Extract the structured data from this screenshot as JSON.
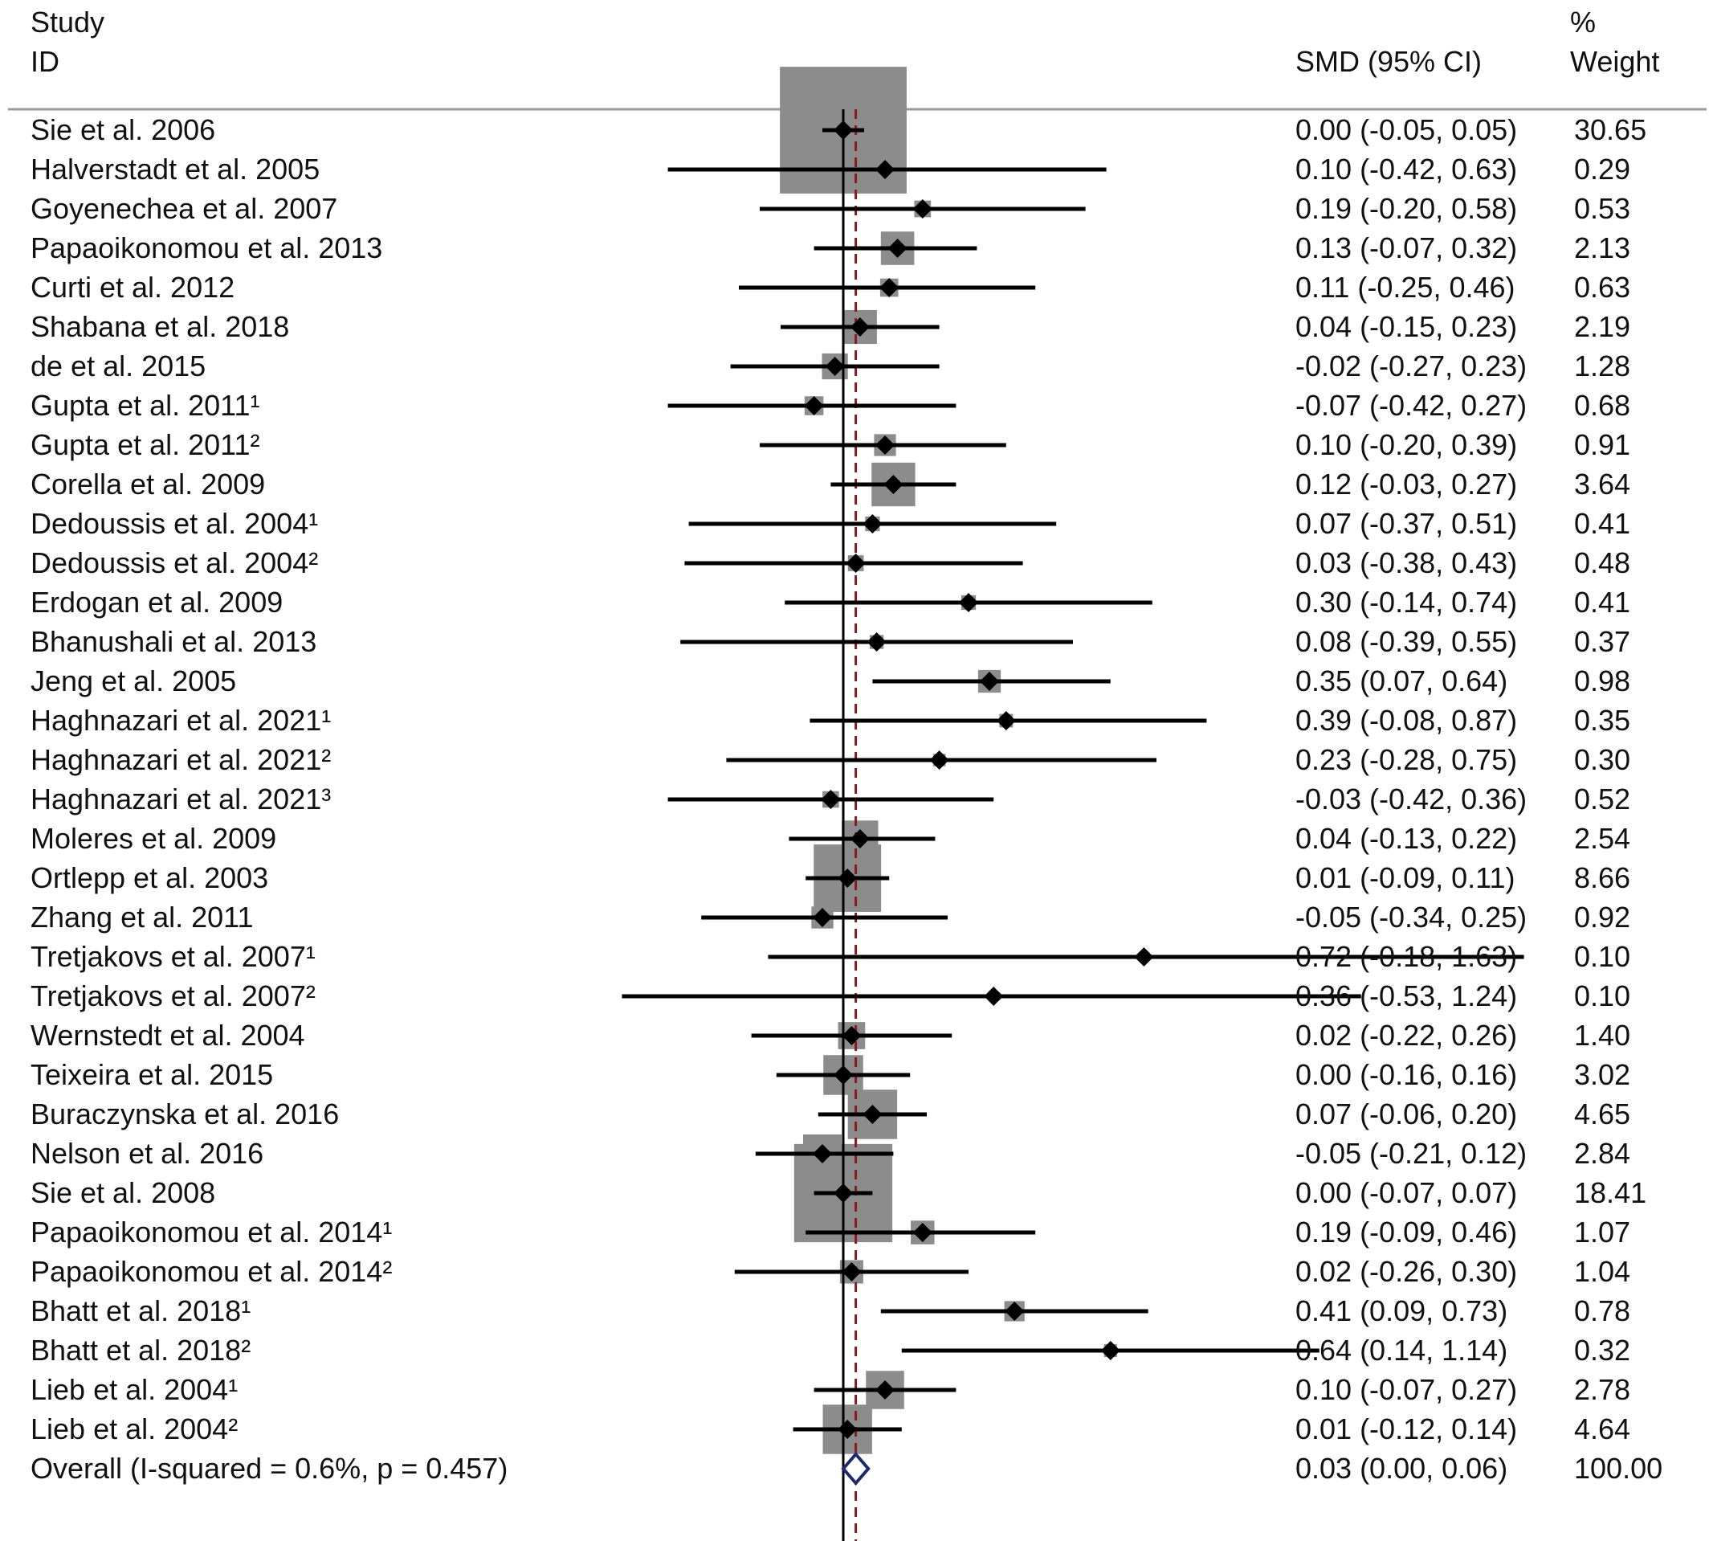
{
  "chart_data": {
    "type": "forest",
    "headers": {
      "study_line1": "Study",
      "study_line2": "ID",
      "estimate": "SMD (95% CI)",
      "weight_line1": "%",
      "weight_line2": "Weight"
    },
    "x_range": [
      -0.55,
      1.63
    ],
    "reference_line": 0,
    "overall_line": 0.03,
    "studies": [
      {
        "label": "Sie et al. 2006",
        "smd": 0.0,
        "lower": -0.05,
        "upper": 0.05,
        "ci_text": "0.00 (-0.05, 0.05)",
        "weight": 30.65,
        "weight_text": "30.65"
      },
      {
        "label": "Halverstadt et al. 2005",
        "smd": 0.1,
        "lower": -0.42,
        "upper": 0.63,
        "ci_text": "0.10 (-0.42, 0.63)",
        "weight": 0.29,
        "weight_text": "0.29"
      },
      {
        "label": "Goyenechea et al. 2007",
        "smd": 0.19,
        "lower": -0.2,
        "upper": 0.58,
        "ci_text": "0.19 (-0.20, 0.58)",
        "weight": 0.53,
        "weight_text": "0.53"
      },
      {
        "label": "Papaoikonomou et al. 2013",
        "smd": 0.13,
        "lower": -0.07,
        "upper": 0.32,
        "ci_text": "0.13 (-0.07, 0.32)",
        "weight": 2.13,
        "weight_text": "2.13"
      },
      {
        "label": "Curti et al. 2012",
        "smd": 0.11,
        "lower": -0.25,
        "upper": 0.46,
        "ci_text": "0.11 (-0.25, 0.46)",
        "weight": 0.63,
        "weight_text": "0.63"
      },
      {
        "label": "Shabana et al. 2018",
        "smd": 0.04,
        "lower": -0.15,
        "upper": 0.23,
        "ci_text": "0.04 (-0.15, 0.23)",
        "weight": 2.19,
        "weight_text": "2.19"
      },
      {
        "label": "de et al. 2015",
        "smd": -0.02,
        "lower": -0.27,
        "upper": 0.23,
        "ci_text": "-0.02 (-0.27, 0.23)",
        "weight": 1.28,
        "weight_text": "1.28"
      },
      {
        "label": "Gupta et al. 2011¹",
        "smd": -0.07,
        "lower": -0.42,
        "upper": 0.27,
        "ci_text": "-0.07 (-0.42, 0.27)",
        "weight": 0.68,
        "weight_text": "0.68"
      },
      {
        "label": "Gupta et al. 2011²",
        "smd": 0.1,
        "lower": -0.2,
        "upper": 0.39,
        "ci_text": "0.10 (-0.20, 0.39)",
        "weight": 0.91,
        "weight_text": "0.91"
      },
      {
        "label": "Corella et al. 2009",
        "smd": 0.12,
        "lower": -0.03,
        "upper": 0.27,
        "ci_text": "0.12 (-0.03, 0.27)",
        "weight": 3.64,
        "weight_text": "3.64"
      },
      {
        "label": "Dedoussis et al. 2004¹",
        "smd": 0.07,
        "lower": -0.37,
        "upper": 0.51,
        "ci_text": "0.07 (-0.37, 0.51)",
        "weight": 0.41,
        "weight_text": "0.41"
      },
      {
        "label": "Dedoussis et al. 2004²",
        "smd": 0.03,
        "lower": -0.38,
        "upper": 0.43,
        "ci_text": "0.03 (-0.38, 0.43)",
        "weight": 0.48,
        "weight_text": "0.48"
      },
      {
        "label": "Erdogan et al. 2009",
        "smd": 0.3,
        "lower": -0.14,
        "upper": 0.74,
        "ci_text": "0.30 (-0.14, 0.74)",
        "weight": 0.41,
        "weight_text": "0.41"
      },
      {
        "label": "Bhanushali et al. 2013",
        "smd": 0.08,
        "lower": -0.39,
        "upper": 0.55,
        "ci_text": "0.08 (-0.39, 0.55)",
        "weight": 0.37,
        "weight_text": "0.37"
      },
      {
        "label": "Jeng et al. 2005",
        "smd": 0.35,
        "lower": 0.07,
        "upper": 0.64,
        "ci_text": "0.35 (0.07, 0.64)",
        "weight": 0.98,
        "weight_text": "0.98"
      },
      {
        "label": "Haghnazari et al. 2021¹",
        "smd": 0.39,
        "lower": -0.08,
        "upper": 0.87,
        "ci_text": "0.39 (-0.08, 0.87)",
        "weight": 0.35,
        "weight_text": "0.35"
      },
      {
        "label": "Haghnazari et al. 2021²",
        "smd": 0.23,
        "lower": -0.28,
        "upper": 0.75,
        "ci_text": "0.23 (-0.28, 0.75)",
        "weight": 0.3,
        "weight_text": "0.30"
      },
      {
        "label": "Haghnazari et al. 2021³",
        "smd": -0.03,
        "lower": -0.42,
        "upper": 0.36,
        "ci_text": "-0.03 (-0.42, 0.36)",
        "weight": 0.52,
        "weight_text": "0.52"
      },
      {
        "label": "Moleres et al. 2009",
        "smd": 0.04,
        "lower": -0.13,
        "upper": 0.22,
        "ci_text": "0.04 (-0.13, 0.22)",
        "weight": 2.54,
        "weight_text": "2.54"
      },
      {
        "label": "Ortlepp et al. 2003",
        "smd": 0.01,
        "lower": -0.09,
        "upper": 0.11,
        "ci_text": "0.01 (-0.09, 0.11)",
        "weight": 8.66,
        "weight_text": "8.66"
      },
      {
        "label": "Zhang et al. 2011",
        "smd": -0.05,
        "lower": -0.34,
        "upper": 0.25,
        "ci_text": "-0.05 (-0.34, 0.25)",
        "weight": 0.92,
        "weight_text": "0.92"
      },
      {
        "label": "Tretjakovs et al. 2007¹",
        "smd": 0.72,
        "lower": -0.18,
        "upper": 1.63,
        "ci_text": "0.72 (-0.18, 1.63)",
        "weight": 0.1,
        "weight_text": "0.10"
      },
      {
        "label": "Tretjakovs et al. 2007²",
        "smd": 0.36,
        "lower": -0.53,
        "upper": 1.24,
        "ci_text": "0.36 (-0.53, 1.24)",
        "weight": 0.1,
        "weight_text": "0.10"
      },
      {
        "label": "Wernstedt et al. 2004",
        "smd": 0.02,
        "lower": -0.22,
        "upper": 0.26,
        "ci_text": "0.02 (-0.22, 0.26)",
        "weight": 1.4,
        "weight_text": "1.40"
      },
      {
        "label": "Teixeira et al. 2015",
        "smd": 0.0,
        "lower": -0.16,
        "upper": 0.16,
        "ci_text": "0.00 (-0.16, 0.16)",
        "weight": 3.02,
        "weight_text": "3.02"
      },
      {
        "label": "Buraczynska et al. 2016",
        "smd": 0.07,
        "lower": -0.06,
        "upper": 0.2,
        "ci_text": "0.07 (-0.06, 0.20)",
        "weight": 4.65,
        "weight_text": "4.65"
      },
      {
        "label": "Nelson et al. 2016",
        "smd": -0.05,
        "lower": -0.21,
        "upper": 0.12,
        "ci_text": "-0.05 (-0.21, 0.12)",
        "weight": 2.84,
        "weight_text": "2.84"
      },
      {
        "label": "Sie et al. 2008",
        "smd": 0.0,
        "lower": -0.07,
        "upper": 0.07,
        "ci_text": "0.00 (-0.07, 0.07)",
        "weight": 18.41,
        "weight_text": "18.41"
      },
      {
        "label": "Papaoikonomou et al. 2014¹",
        "smd": 0.19,
        "lower": -0.09,
        "upper": 0.46,
        "ci_text": "0.19 (-0.09, 0.46)",
        "weight": 1.07,
        "weight_text": "1.07"
      },
      {
        "label": "Papaoikonomou et al. 2014²",
        "smd": 0.02,
        "lower": -0.26,
        "upper": 0.3,
        "ci_text": "0.02 (-0.26, 0.30)",
        "weight": 1.04,
        "weight_text": "1.04"
      },
      {
        "label": "Bhatt et al. 2018¹",
        "smd": 0.41,
        "lower": 0.09,
        "upper": 0.73,
        "ci_text": "0.41 (0.09, 0.73)",
        "weight": 0.78,
        "weight_text": "0.78"
      },
      {
        "label": "Bhatt et al. 2018²",
        "smd": 0.64,
        "lower": 0.14,
        "upper": 1.14,
        "ci_text": "0.64 (0.14, 1.14)",
        "weight": 0.32,
        "weight_text": "0.32"
      },
      {
        "label": "Lieb et al. 2004¹",
        "smd": 0.1,
        "lower": -0.07,
        "upper": 0.27,
        "ci_text": "0.10 (-0.07, 0.27)",
        "weight": 2.78,
        "weight_text": "2.78"
      },
      {
        "label": "Lieb et al. 2004²",
        "smd": 0.01,
        "lower": -0.12,
        "upper": 0.14,
        "ci_text": "0.01 (-0.12, 0.14)",
        "weight": 4.64,
        "weight_text": "4.64"
      }
    ],
    "overall": {
      "label": "Overall  (I-squared = 0.6%, p = 0.457)",
      "smd": 0.03,
      "lower": 0.0,
      "upper": 0.06,
      "ci_text": "0.03 (0.00, 0.06)",
      "weight_text": "100.00"
    },
    "colors": {
      "text": "#111111",
      "weight_box": "#8c8c8c",
      "ci_line": "#000000",
      "point": "#000000",
      "reference_line": "#000000",
      "overall_line": "#8b1a1a",
      "overall_diamond": "#1c2b6e",
      "header_rule": "#9a9a9a"
    }
  }
}
